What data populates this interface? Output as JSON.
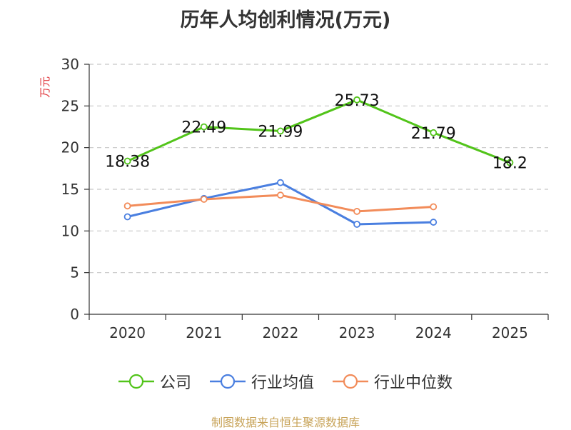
{
  "footer": "制图数据来自恒生聚源数据库",
  "chart_data": {
    "type": "line",
    "title": "历年人均创利情况(万元)",
    "ylabel": "万元",
    "xlabel": "",
    "categories": [
      "2020",
      "2021",
      "2022",
      "2023",
      "2024",
      "2025"
    ],
    "ylim": [
      0,
      30
    ],
    "yticks": [
      0,
      5,
      10,
      15,
      20,
      25,
      30
    ],
    "grid": true,
    "legend_position": "bottom",
    "series": [
      {
        "name": "公司",
        "color": "#52c41a",
        "values": [
          18.38,
          22.49,
          21.99,
          25.73,
          21.79,
          18.2
        ],
        "labels": [
          "18.38",
          "22.49",
          "21.99",
          "25.73",
          "21.79",
          "18.2"
        ]
      },
      {
        "name": "行业均值",
        "color": "#4a7fe0",
        "values": [
          11.7,
          13.9,
          15.8,
          10.8,
          11.05,
          null
        ]
      },
      {
        "name": "行业中位数",
        "color": "#f28c5a",
        "values": [
          13.0,
          13.8,
          14.3,
          12.35,
          12.9,
          null
        ]
      }
    ]
  }
}
